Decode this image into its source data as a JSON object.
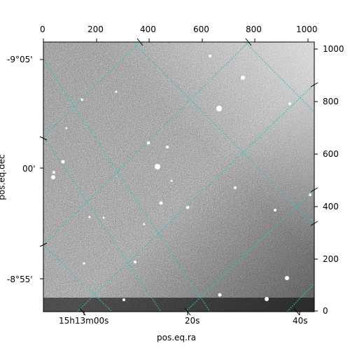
{
  "figure": {
    "x_axis_label": "pos.eq.ra",
    "y_axis_label": "pos.eq.dec",
    "top_ticks": [
      "0",
      "200",
      "400",
      "600",
      "800",
      "1000"
    ],
    "right_ticks": [
      "0",
      "200",
      "400",
      "600",
      "800",
      "1000"
    ],
    "left_ticks": [
      "-9°05'",
      "00'",
      "-8°55'"
    ],
    "bottom_ticks": [
      "15h13m00s",
      "20s",
      "40s"
    ],
    "grid_color": "#2ec4c4",
    "image_colormap": "grayscale"
  }
}
